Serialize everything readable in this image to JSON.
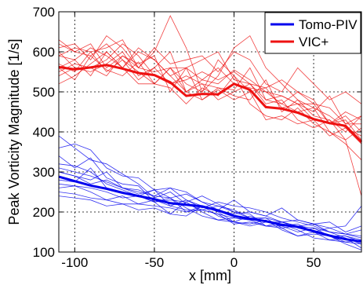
{
  "chart_data": {
    "type": "line",
    "xlabel": "x [mm]",
    "ylabel": "Peak Vorticity Magnitude [1/s]",
    "xlim": [
      -110,
      80
    ],
    "ylim": [
      100,
      700
    ],
    "xticks": [
      -100,
      -50,
      0,
      50
    ],
    "yticks": [
      100,
      200,
      300,
      400,
      500,
      600,
      700
    ],
    "grid": true,
    "legend_position": "top-right",
    "colors": {
      "tomo": "#0000ee",
      "vic": "#ee1111"
    },
    "x": [
      -110,
      -100,
      -90,
      -80,
      -70,
      -60,
      -50,
      -40,
      -30,
      -20,
      -10,
      0,
      10,
      20,
      30,
      40,
      50,
      60,
      70,
      80
    ],
    "series": [
      {
        "name": "Tomo-PIV",
        "mean": true,
        "values": [
          288,
          277,
          266,
          258,
          248,
          240,
          232,
          222,
          218,
          214,
          204,
          190,
          183,
          177,
          168,
          163,
          152,
          141,
          132,
          126
        ]
      },
      {
        "name": "VIC+",
        "mean": true,
        "values": [
          562,
          556,
          561,
          567,
          558,
          547,
          542,
          524,
          490,
          495,
          494,
          520,
          505,
          462,
          458,
          448,
          432,
          422,
          415,
          375
        ]
      }
    ],
    "individual_runs": {
      "Tomo-PIV": [
        [
          390,
          360,
          330,
          320,
          295,
          270,
          235,
          250,
          220,
          205,
          215,
          200,
          185,
          175,
          165,
          170,
          150,
          160,
          145,
          140
        ],
        [
          340,
          310,
          335,
          285,
          270,
          265,
          225,
          235,
          200,
          215,
          190,
          175,
          170,
          180,
          155,
          140,
          150,
          130,
          135,
          120
        ],
        [
          300,
          290,
          280,
          300,
          260,
          250,
          240,
          260,
          250,
          225,
          205,
          230,
          200,
          190,
          210,
          180,
          170,
          175,
          150,
          165
        ],
        [
          280,
          275,
          310,
          260,
          250,
          240,
          225,
          195,
          225,
          240,
          220,
          200,
          195,
          165,
          175,
          165,
          160,
          140,
          140,
          130
        ],
        [
          260,
          265,
          250,
          230,
          240,
          220,
          230,
          215,
          205,
          205,
          195,
          170,
          175,
          165,
          160,
          140,
          145,
          140,
          120,
          105
        ],
        [
          300,
          290,
          270,
          280,
          260,
          255,
          240,
          235,
          210,
          190,
          180,
          185,
          180,
          185,
          175,
          180,
          170,
          150,
          135,
          110
        ],
        [
          270,
          265,
          260,
          250,
          235,
          240,
          225,
          230,
          225,
          200,
          180,
          175,
          190,
          175,
          175,
          160,
          150,
          140,
          140,
          125
        ],
        [
          250,
          245,
          235,
          230,
          220,
          220,
          215,
          210,
          200,
          205,
          195,
          185,
          180,
          165,
          165,
          150,
          160,
          150,
          145,
          155
        ],
        [
          310,
          300,
          290,
          275,
          260,
          245,
          255,
          235,
          245,
          225,
          215,
          205,
          185,
          185,
          160,
          165,
          150,
          140,
          125,
          130
        ],
        [
          240,
          235,
          230,
          215,
          220,
          205,
          210,
          195,
          190,
          215,
          200,
          175,
          165,
          175,
          170,
          155,
          135,
          130,
          125,
          120
        ],
        [
          320,
          315,
          300,
          270,
          255,
          240,
          255,
          215,
          230,
          215,
          205,
          195,
          200,
          190,
          175,
          165,
          170,
          160,
          165,
          215
        ],
        [
          360,
          370,
          355,
          310,
          290,
          285,
          255,
          260,
          230,
          210,
          225,
          215,
          210,
          200,
          185,
          175,
          165,
          150,
          145,
          135
        ]
      ],
      "VIC+": [
        [
          610,
          620,
          580,
          640,
          610,
          560,
          610,
          570,
          580,
          590,
          550,
          600,
          580,
          520,
          500,
          560,
          520,
          480,
          500,
          470
        ],
        [
          560,
          530,
          590,
          555,
          540,
          575,
          520,
          560,
          500,
          530,
          520,
          555,
          530,
          500,
          490,
          470,
          450,
          490,
          420,
          440
        ],
        [
          590,
          610,
          600,
          550,
          580,
          530,
          560,
          520,
          540,
          520,
          510,
          505,
          560,
          480,
          470,
          500,
          480,
          420,
          440,
          400
        ],
        [
          520,
          540,
          570,
          600,
          560,
          610,
          580,
          540,
          500,
          480,
          505,
          480,
          500,
          430,
          440,
          420,
          430,
          390,
          410,
          370
        ],
        [
          600,
          560,
          560,
          580,
          620,
          590,
          540,
          520,
          530,
          550,
          530,
          550,
          520,
          480,
          490,
          470,
          470,
          460,
          420,
          420
        ],
        [
          630,
          600,
          620,
          560,
          590,
          560,
          600,
          690,
          610,
          500,
          580,
          540,
          500,
          510,
          460,
          470,
          430,
          420,
          430,
          380
        ],
        [
          560,
          580,
          540,
          600,
          560,
          520,
          520,
          510,
          470,
          510,
          490,
          540,
          470,
          440,
          430,
          460,
          420,
          400,
          370,
          330
        ],
        [
          570,
          550,
          600,
          610,
          630,
          560,
          550,
          560,
          520,
          500,
          540,
          610,
          640,
          560,
          520,
          480,
          460,
          440,
          410,
          390
        ],
        [
          540,
          560,
          550,
          570,
          600,
          540,
          560,
          600,
          500,
          520,
          480,
          500,
          520,
          470,
          480,
          430,
          410,
          430,
          380,
          240
        ],
        [
          590,
          580,
          610,
          590,
          560,
          600,
          580,
          540,
          560,
          530,
          560,
          520,
          510,
          500,
          470,
          450,
          460,
          400,
          380,
          410
        ],
        [
          620,
          600,
          590,
          620,
          580,
          550,
          520,
          560,
          560,
          580,
          600,
          530,
          520,
          510,
          530,
          500,
          470,
          420,
          450,
          430
        ],
        [
          550,
          570,
          560,
          540,
          590,
          570,
          590,
          500,
          560,
          480,
          510,
          490,
          480,
          530,
          450,
          480,
          440,
          430,
          400,
          440
        ]
      ]
    }
  }
}
